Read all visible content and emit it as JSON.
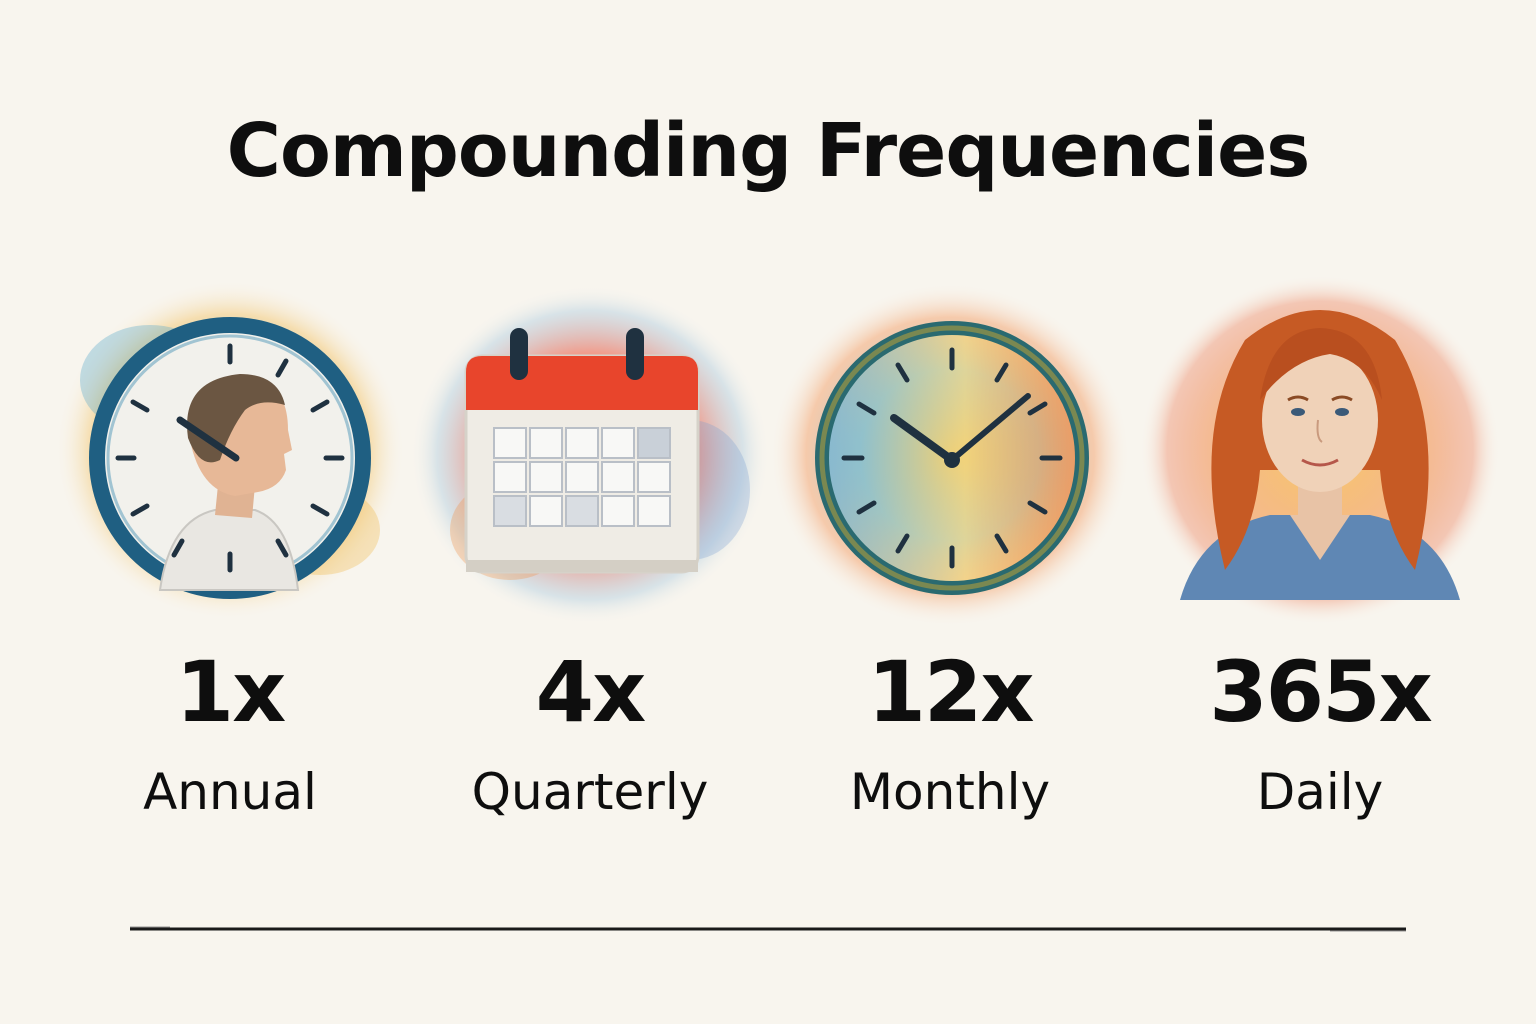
{
  "title": "Compounding Frequencies",
  "frequencies": [
    {
      "multiplier": "1x",
      "label": "Annual",
      "icon": "clock-with-man-profile-icon",
      "colors": [
        "#3a8fb5",
        "#7cc3d8",
        "#f0b23a"
      ]
    },
    {
      "multiplier": "4x",
      "label": "Quarterly",
      "icon": "calendar-icon",
      "colors": [
        "#e8452c",
        "#f58a3c",
        "#8cb8d8"
      ]
    },
    {
      "multiplier": "12x",
      "label": "Monthly",
      "icon": "clock-icon",
      "colors": [
        "#f2b632",
        "#5fb0dc",
        "#f07a2f"
      ]
    },
    {
      "multiplier": "365x",
      "label": "Daily",
      "icon": "woman-portrait-icon",
      "colors": [
        "#f28a3a",
        "#e85a2c",
        "#f7c04a"
      ]
    }
  ],
  "colors": {
    "background": "#f8f5ee",
    "text": "#0e0e0e",
    "clock_ring": "#1f5f82",
    "calendar_header": "#e8452c"
  }
}
